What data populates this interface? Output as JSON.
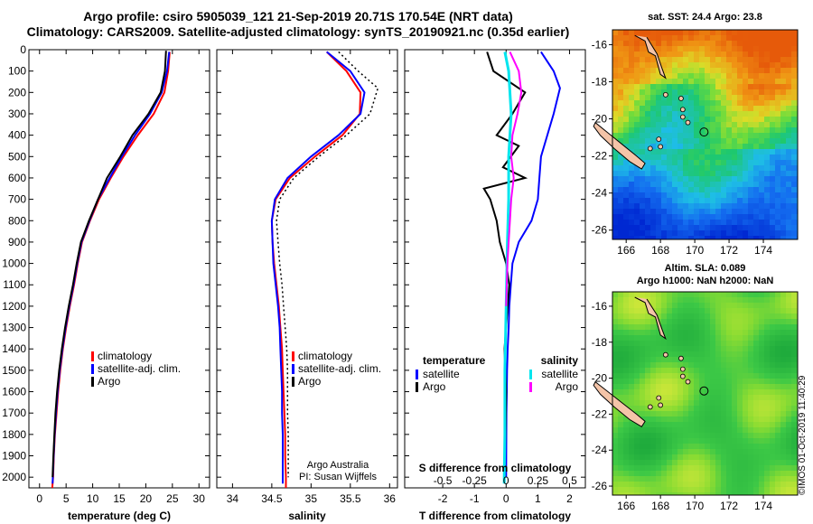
{
  "header": {
    "title_line1": "Argo profile: csiro 5905039_121 21-Sep-2019 20.71S 170.54E (NRT data)",
    "title_line2": "Climatology: CARS2009. Satellite-adjusted climatology: synTS_20190921.nc (0.35d earlier)"
  },
  "sst_map": {
    "title": "sat. SST: 24.4 Argo: 23.8",
    "lat_ticks": [
      "-16",
      "-18",
      "-20",
      "-22",
      "-24",
      "-26"
    ],
    "lon_ticks": [
      "166",
      "168",
      "170",
      "172",
      "174"
    ]
  },
  "sla_map": {
    "title_line1": "Altim. SLA: 0.089",
    "title_line2": "Argo h1000: NaN h2000: NaN",
    "lat_ticks": [
      "-16",
      "-18",
      "-20",
      "-22",
      "-24",
      "-26"
    ],
    "lon_ticks": [
      "166",
      "168",
      "170",
      "172",
      "174"
    ]
  },
  "credit": {
    "line1": "Argo Australia",
    "line2": "PI: Susan Wijffels"
  },
  "stamp": "©IMOS 01-Oct-2019 11:40:29",
  "colors": {
    "climatology": "#ff0000",
    "satellite": "#0000ff",
    "argo": "#000000",
    "sat_salinity": "#00e5ee",
    "argo_salinity": "#ff00ff"
  },
  "chart_data": [
    {
      "type": "line",
      "xlabel": "temperature (deg C)",
      "ylabel": "",
      "xlim": [
        -2,
        32
      ],
      "ylim": [
        2050,
        0
      ],
      "x_ticks": [
        "0",
        "5",
        "10",
        "15",
        "20",
        "25",
        "30"
      ],
      "y_ticks": [
        "0",
        "100",
        "200",
        "300",
        "400",
        "500",
        "600",
        "700",
        "800",
        "900",
        "1000",
        "1100",
        "1200",
        "1300",
        "1400",
        "1500",
        "1600",
        "1700",
        "1800",
        "1900",
        "2000"
      ],
      "legend": [
        "climatology",
        "satellite-adj. clim.",
        "Argo"
      ],
      "series": [
        {
          "name": "climatology",
          "x": [
            24.5,
            24.2,
            23.5,
            21.5,
            18.5,
            15.8,
            13.4,
            11.2,
            9.5,
            8.0,
            7.2,
            6.5,
            5.7,
            5.0,
            4.4,
            3.9,
            3.5,
            3.2,
            2.9,
            2.7,
            2.55,
            2.45,
            2.4
          ],
          "y": [
            10,
            100,
            200,
            300,
            400,
            500,
            600,
            700,
            800,
            900,
            1000,
            1100,
            1200,
            1300,
            1400,
            1500,
            1600,
            1700,
            1800,
            1900,
            2000,
            2030,
            2050
          ]
        },
        {
          "name": "satellite-adj. clim.",
          "x": [
            24.4,
            24.0,
            23.0,
            20.8,
            18.0,
            15.5,
            13.2,
            11.0,
            9.4,
            7.9,
            7.1,
            6.4,
            5.6,
            4.9,
            4.3,
            3.8,
            3.4,
            3.1,
            2.85,
            2.65,
            2.5,
            2.45
          ],
          "y": [
            10,
            100,
            200,
            300,
            400,
            500,
            600,
            700,
            800,
            900,
            1000,
            1100,
            1200,
            1300,
            1400,
            1500,
            1600,
            1700,
            1800,
            1900,
            2000,
            2030
          ]
        },
        {
          "name": "Argo",
          "x": [
            23.8,
            23.6,
            22.8,
            20.5,
            17.5,
            15.2,
            12.7,
            11.0,
            9.3,
            7.8,
            7.0,
            6.3,
            5.5,
            4.8,
            4.2,
            3.7,
            3.3,
            3.0,
            2.8,
            2.6,
            2.45
          ],
          "y": [
            5,
            100,
            200,
            300,
            400,
            500,
            600,
            700,
            800,
            900,
            1000,
            1100,
            1200,
            1300,
            1400,
            1500,
            1600,
            1700,
            1800,
            1900,
            2000
          ]
        }
      ]
    },
    {
      "type": "line",
      "xlabel": "salinity",
      "ylabel": "",
      "xlim": [
        33.8,
        36.1
      ],
      "ylim": [
        2050,
        0
      ],
      "x_ticks": [
        "34",
        "34.5",
        "35",
        "35.5",
        "36"
      ],
      "legend": [
        "climatology",
        "satellite-adj. clim.",
        "Argo"
      ],
      "series": [
        {
          "name": "climatology",
          "x": [
            35.2,
            35.45,
            35.63,
            35.62,
            35.4,
            35.05,
            34.73,
            34.55,
            34.5,
            34.51,
            34.53,
            34.56,
            34.59,
            34.61,
            34.63,
            34.64,
            34.65,
            34.66,
            34.67,
            34.67,
            34.68,
            34.68
          ],
          "y": [
            10,
            100,
            200,
            300,
            400,
            500,
            600,
            700,
            800,
            900,
            1000,
            1100,
            1200,
            1300,
            1400,
            1500,
            1600,
            1700,
            1800,
            1900,
            2000,
            2050
          ]
        },
        {
          "name": "satellite-adj. clim.",
          "x": [
            35.2,
            35.5,
            35.68,
            35.63,
            35.35,
            35.0,
            34.7,
            34.54,
            34.5,
            34.51,
            34.52,
            34.55,
            34.58,
            34.6,
            34.61,
            34.62,
            34.63,
            34.63,
            34.64,
            34.64,
            34.64
          ],
          "y": [
            10,
            100,
            200,
            300,
            400,
            500,
            600,
            700,
            800,
            900,
            1000,
            1100,
            1200,
            1300,
            1400,
            1500,
            1600,
            1700,
            1800,
            1900,
            2030
          ]
        },
        {
          "name": "Argo",
          "x": [
            35.35,
            35.6,
            35.85,
            35.75,
            35.45,
            35.1,
            34.78,
            34.6,
            34.56,
            34.58,
            34.6,
            34.63,
            34.65,
            34.67,
            34.69,
            34.7,
            34.7,
            34.7,
            34.71,
            34.71,
            34.71
          ],
          "y": [
            10,
            100,
            180,
            300,
            400,
            500,
            600,
            700,
            800,
            900,
            1000,
            1100,
            1200,
            1300,
            1400,
            1500,
            1600,
            1700,
            1800,
            1900,
            2000
          ]
        }
      ]
    },
    {
      "type": "line",
      "xlabel": "T difference from climatology",
      "x2label": "S difference from climatology",
      "ylabel": "",
      "xlim": [
        -3.2,
        2.5
      ],
      "x2lim": [
        -0.8,
        0.625
      ],
      "ylim": [
        2050,
        0
      ],
      "x_ticks": [
        "-2",
        "-1",
        "0",
        "1",
        "2"
      ],
      "x2_ticks": [
        "-0.5",
        "-0.25",
        "0",
        "0.25",
        "0.5"
      ],
      "legend_left": {
        "title": "temperature",
        "items": [
          "satellite",
          "Argo"
        ]
      },
      "legend_right": {
        "title": "salinity",
        "items": [
          "satellite",
          "Argo"
        ]
      },
      "series": [
        {
          "name": "satellite",
          "x": [
            1.1,
            1.5,
            1.7,
            1.5,
            1.3,
            1.1,
            1.05,
            1.0,
            0.8,
            0.4,
            0.2,
            0.15,
            0.1,
            0.08,
            0.05,
            0.03,
            0.02,
            0.01,
            0.0
          ],
          "y": [
            10,
            100,
            180,
            300,
            400,
            500,
            600,
            700,
            800,
            900,
            1000,
            1100,
            1200,
            1300,
            1400,
            1500,
            1600,
            1700,
            2000
          ]
        },
        {
          "name": "Argo",
          "x": [
            -0.6,
            -0.4,
            0.6,
            0.2,
            -0.3,
            0.4,
            -0.1,
            0.6,
            -0.7,
            -0.5,
            -0.3,
            -0.2,
            0.0,
            0.1,
            0.05,
            -0.05,
            0.0,
            -0.02,
            -0.05,
            -0.05
          ],
          "y": [
            10,
            100,
            200,
            300,
            400,
            450,
            550,
            600,
            650,
            700,
            800,
            900,
            1000,
            1100,
            1200,
            1400,
            1600,
            1800,
            1900,
            2000
          ]
        },
        {
          "name": "satellite",
          "x": [
            -0.01,
            0.02,
            0.03,
            0.04,
            0.03,
            0.02,
            0.02,
            0.01,
            0.0,
            -0.01,
            -0.01,
            -0.015,
            -0.015
          ],
          "y": [
            10,
            100,
            200,
            300,
            400,
            500,
            700,
            900,
            1200,
            1500,
            1800,
            2000,
            2030
          ]
        },
        {
          "name": "Argo",
          "x": [
            0.03,
            0.1,
            0.12,
            0.09,
            0.05,
            0.04,
            0.06,
            0.04,
            0.03,
            0.01,
            0.0
          ],
          "y": [
            10,
            100,
            200,
            300,
            400,
            500,
            600,
            700,
            800,
            1000,
            1200
          ]
        }
      ]
    }
  ]
}
